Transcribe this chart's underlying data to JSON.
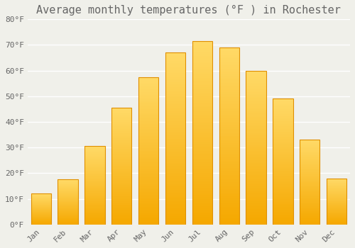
{
  "title": "Average monthly temperatures (°F ) in Rochester",
  "months": [
    "Jan",
    "Feb",
    "Mar",
    "Apr",
    "May",
    "Jun",
    "Jul",
    "Aug",
    "Sep",
    "Oct",
    "Nov",
    "Dec"
  ],
  "values": [
    12,
    17.5,
    30.5,
    45.5,
    57.5,
    67,
    71.5,
    69,
    60,
    49,
    33,
    18
  ],
  "bar_color_bottom": "#F5A800",
  "bar_color_top": "#FFD966",
  "bar_edge_color": "#E09000",
  "background_color": "#F0F0EA",
  "grid_color": "#FFFFFF",
  "text_color": "#666666",
  "ylim": [
    0,
    80
  ],
  "yticks": [
    0,
    10,
    20,
    30,
    40,
    50,
    60,
    70,
    80
  ],
  "ytick_labels": [
    "0°F",
    "10°F",
    "20°F",
    "30°F",
    "40°F",
    "50°F",
    "60°F",
    "70°F",
    "80°F"
  ],
  "title_fontsize": 11,
  "tick_fontsize": 8,
  "font_family": "monospace",
  "bar_width": 0.75,
  "n_gradient_steps": 100
}
